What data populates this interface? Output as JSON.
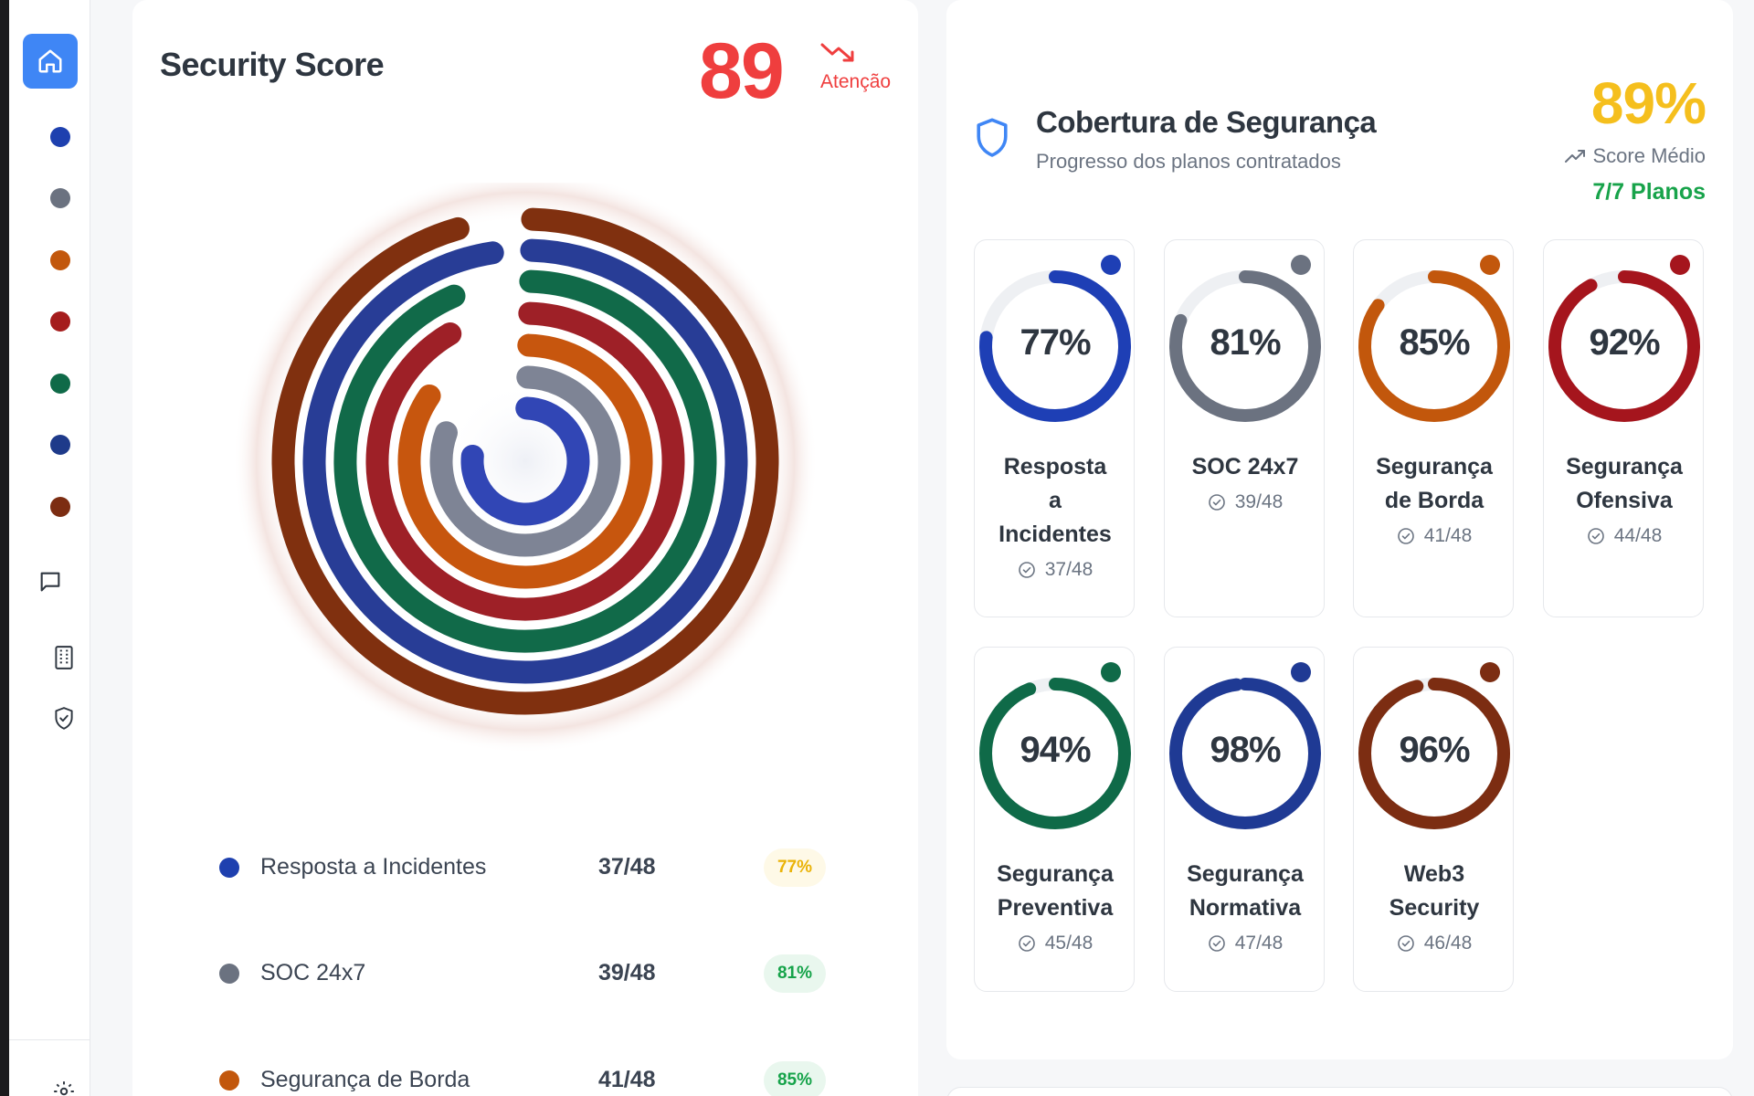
{
  "sidebar": {
    "dots": [
      {
        "color": "#1e40af"
      },
      {
        "color": "#6b7280"
      },
      {
        "color": "#c2570c"
      },
      {
        "color": "#a51c1c"
      },
      {
        "color": "#0f6a48"
      },
      {
        "color": "#1e3a8a"
      },
      {
        "color": "#7c2d12"
      }
    ],
    "icons": [
      "home-icon",
      "chat-icon",
      "building-icon",
      "shield-check-icon",
      "settings-icon"
    ]
  },
  "security_score": {
    "title": "Security Score",
    "value": "89",
    "status": "Atenção",
    "status_color": "#ef3e3e",
    "trend_icon": "trending-down-icon",
    "legend": [
      {
        "name": "Resposta a Incidentes",
        "count": "37/48",
        "percent": "77%",
        "color": "#1e40af",
        "badge_bg": "#fef9e7",
        "badge_fg": "#eab308"
      },
      {
        "name": "SOC 24x7",
        "count": "39/48",
        "percent": "81%",
        "color": "#6b7280",
        "badge_bg": "#e9f7ee",
        "badge_fg": "#16a34a"
      },
      {
        "name": "Segurança de Borda",
        "count": "41/48",
        "percent": "85%",
        "color": "#c2570c",
        "badge_bg": "#e9f7ee",
        "badge_fg": "#16a34a"
      }
    ]
  },
  "chart_data": {
    "type": "radial-bar",
    "series": [
      {
        "name": "Resposta a Incidentes",
        "value": 77,
        "color": "#3146b5"
      },
      {
        "name": "SOC 24x7",
        "value": 81,
        "color": "#7e8495"
      },
      {
        "name": "Segurança de Borda",
        "value": 85,
        "color": "#c7560e"
      },
      {
        "name": "Segurança Ofensiva",
        "value": 92,
        "color": "#9e2027"
      },
      {
        "name": "Segurança Preventiva",
        "value": 94,
        "color": "#116a49"
      },
      {
        "name": "Segurança Normativa",
        "value": 98,
        "color": "#283d96"
      },
      {
        "name": "Web3 Security",
        "value": 96,
        "color": "#80300f"
      }
    ],
    "max": 100
  },
  "coverage": {
    "title": "Cobertura de Segurança",
    "subtitle": "Progresso dos planos contratados",
    "score": "89%",
    "score_label": "Score Médio",
    "plans": "7/7 Planos",
    "tiles": [
      {
        "percent": "77%",
        "value": 77,
        "name_lines": [
          "Resposta",
          "a",
          "Incidentes"
        ],
        "count": "37/48",
        "color": "#1e3fb5"
      },
      {
        "percent": "81%",
        "value": 81,
        "name_lines": [
          "SOC 24x7"
        ],
        "count": "39/48",
        "color": "#6b7280"
      },
      {
        "percent": "85%",
        "value": 85,
        "name_lines": [
          "Segurança",
          "de Borda"
        ],
        "count": "41/48",
        "color": "#c2570c"
      },
      {
        "percent": "92%",
        "value": 92,
        "name_lines": [
          "Segurança",
          "Ofensiva"
        ],
        "count": "44/48",
        "color": "#a5151d"
      },
      {
        "percent": "94%",
        "value": 94,
        "name_lines": [
          "Segurança",
          "Preventiva"
        ],
        "count": "45/48",
        "color": "#0f6a48"
      },
      {
        "percent": "98%",
        "value": 98,
        "name_lines": [
          "Segurança",
          "Normativa"
        ],
        "count": "47/48",
        "color": "#1f3a94"
      },
      {
        "percent": "96%",
        "value": 96,
        "name_lines": [
          "Web3",
          "Security"
        ],
        "count": "46/48",
        "color": "#7c2d12"
      }
    ]
  }
}
